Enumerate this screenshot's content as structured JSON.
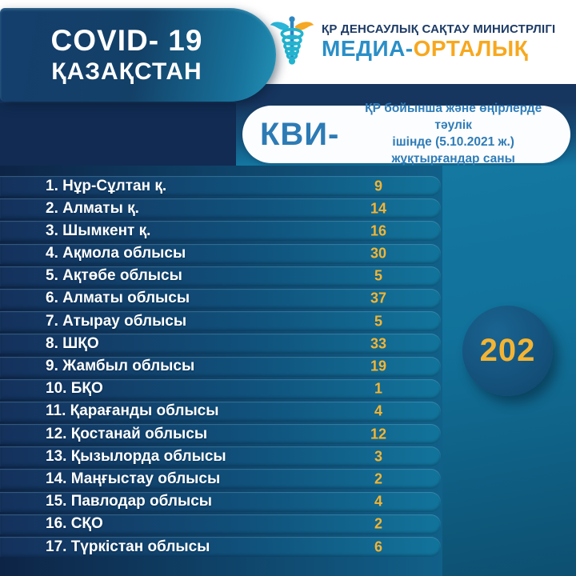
{
  "badge": {
    "line1": "COVID- 19",
    "line2": "ҚАЗАҚСТАН"
  },
  "header": {
    "ministry": "ҚР ДЕНСАУЛЫҚ САҚТАУ МИНИСТРЛІГІ",
    "brand_blue": "МЕДИА-",
    "brand_orange": "ОРТАЛЫҚ",
    "logo_icon": "caduceus-icon"
  },
  "kvi": {
    "label": "КВИ-",
    "description_lines": [
      "ҚР бойынша және өңірлерде тәулік",
      "ішінде (5.10.2021 ж.)",
      "жұқтырғандар саны"
    ]
  },
  "total": {
    "value": "202"
  },
  "regions": [
    {
      "label": "1. Нұр-Сұлтан қ.",
      "value": "9"
    },
    {
      "label": "2. Алматы қ.",
      "value": "14"
    },
    {
      "label": "3. Шымкент қ.",
      "value": "16"
    },
    {
      "label": "4. Ақмола облысы",
      "value": "30"
    },
    {
      "label": "5. Ақтөбе облысы",
      "value": "5"
    },
    {
      "label": "6. Алматы облысы",
      "value": "37"
    },
    {
      "label": "7. Атырау облысы",
      "value": "5"
    },
    {
      "label": "8. ШҚО",
      "value": "33"
    },
    {
      "label": "9. Жамбыл облысы",
      "value": "19"
    },
    {
      "label": "10. БҚО",
      "value": "1"
    },
    {
      "label": "11. Қарағанды облысы",
      "value": "4"
    },
    {
      "label": "12. Қостанай облысы",
      "value": "12"
    },
    {
      "label": "13. Қызылорда облысы",
      "value": "3"
    },
    {
      "label": "14. Маңғыстау облысы",
      "value": "2"
    },
    {
      "label": "15. Павлодар облысы",
      "value": "4"
    },
    {
      "label": "16. СҚО",
      "value": "2"
    },
    {
      "label": "17. Түркістан облысы",
      "value": "6"
    }
  ],
  "chart_data": {
    "type": "table",
    "title": "КВИ- ҚР бойынша және өңірлерде тәулік ішінде (5.10.2021 ж.) жұқтырғандар саны",
    "date": "5.10.2021",
    "categories": [
      "Нұр-Сұлтан қ.",
      "Алматы қ.",
      "Шымкент қ.",
      "Ақмола облысы",
      "Ақтөбе облысы",
      "Алматы облысы",
      "Атырау облысы",
      "ШҚО",
      "Жамбыл облысы",
      "БҚО",
      "Қарағанды облысы",
      "Қостанай облысы",
      "Қызылорда облысы",
      "Маңғыстау облысы",
      "Павлодар облысы",
      "СҚО",
      "Түркістан облысы"
    ],
    "values": [
      9,
      14,
      16,
      30,
      5,
      37,
      5,
      33,
      19,
      1,
      4,
      12,
      3,
      2,
      4,
      2,
      6
    ],
    "total": 202
  },
  "colors": {
    "navy": "#14315c",
    "teal": "#1377a0",
    "accent_yellow": "#f3b434",
    "brand_blue": "#2a8fc7",
    "brand_orange": "#f7a81f",
    "text_blue": "#2c7bb5"
  }
}
